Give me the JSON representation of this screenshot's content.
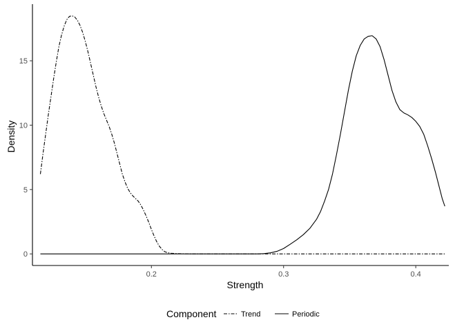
{
  "chart_data": {
    "type": "line",
    "title": "",
    "xlabel": "Strength",
    "ylabel": "Density",
    "xlim": [
      0.11,
      0.425
    ],
    "ylim": [
      -0.9,
      19.4
    ],
    "x_ticks": [
      0.2,
      0.3,
      0.4
    ],
    "x_tick_labels": [
      "0.2",
      "0.3",
      "0.4"
    ],
    "y_ticks": [
      0,
      5,
      10,
      15
    ],
    "y_tick_labels": [
      "0",
      "5",
      "10",
      "15"
    ],
    "grid": false,
    "legend": {
      "position": "bottom",
      "title": "Component",
      "entries": [
        "Trend",
        "Periodic"
      ]
    },
    "series": [
      {
        "name": "Trend",
        "line_style": "dashdot",
        "color": "#000000",
        "points": [
          [
            0.116,
            6.2
          ],
          [
            0.118,
            7.8
          ],
          [
            0.12,
            9.3
          ],
          [
            0.122,
            10.8
          ],
          [
            0.124,
            12.2
          ],
          [
            0.126,
            13.6
          ],
          [
            0.128,
            14.9
          ],
          [
            0.13,
            16.1
          ],
          [
            0.132,
            17.0
          ],
          [
            0.134,
            17.7
          ],
          [
            0.136,
            18.2
          ],
          [
            0.138,
            18.45
          ],
          [
            0.14,
            18.5
          ],
          [
            0.142,
            18.4
          ],
          [
            0.144,
            18.15
          ],
          [
            0.146,
            17.75
          ],
          [
            0.148,
            17.2
          ],
          [
            0.15,
            16.5
          ],
          [
            0.152,
            15.7
          ],
          [
            0.154,
            14.8
          ],
          [
            0.156,
            13.9
          ],
          [
            0.158,
            13.0
          ],
          [
            0.16,
            12.2
          ],
          [
            0.162,
            11.5
          ],
          [
            0.164,
            10.9
          ],
          [
            0.166,
            10.4
          ],
          [
            0.168,
            9.9
          ],
          [
            0.17,
            9.3
          ],
          [
            0.172,
            8.6
          ],
          [
            0.174,
            7.8
          ],
          [
            0.176,
            7.0
          ],
          [
            0.178,
            6.2
          ],
          [
            0.18,
            5.6
          ],
          [
            0.182,
            5.1
          ],
          [
            0.184,
            4.75
          ],
          [
            0.186,
            4.5
          ],
          [
            0.188,
            4.3
          ],
          [
            0.19,
            4.1
          ],
          [
            0.192,
            3.8
          ],
          [
            0.194,
            3.4
          ],
          [
            0.196,
            2.95
          ],
          [
            0.198,
            2.45
          ],
          [
            0.2,
            1.9
          ],
          [
            0.202,
            1.4
          ],
          [
            0.204,
            0.95
          ],
          [
            0.206,
            0.6
          ],
          [
            0.208,
            0.35
          ],
          [
            0.21,
            0.18
          ],
          [
            0.212,
            0.1
          ],
          [
            0.215,
            0.05
          ],
          [
            0.22,
            0.02
          ],
          [
            0.23,
            0.0
          ],
          [
            0.3,
            0.0
          ],
          [
            0.422,
            0.0
          ]
        ]
      },
      {
        "name": "Periodic",
        "line_style": "solid",
        "color": "#000000",
        "points": [
          [
            0.116,
            0.0
          ],
          [
            0.28,
            0.0
          ],
          [
            0.285,
            0.02
          ],
          [
            0.29,
            0.08
          ],
          [
            0.295,
            0.2
          ],
          [
            0.3,
            0.42
          ],
          [
            0.305,
            0.75
          ],
          [
            0.31,
            1.1
          ],
          [
            0.315,
            1.5
          ],
          [
            0.32,
            2.0
          ],
          [
            0.325,
            2.7
          ],
          [
            0.328,
            3.3
          ],
          [
            0.331,
            4.1
          ],
          [
            0.334,
            5.0
          ],
          [
            0.337,
            6.2
          ],
          [
            0.34,
            7.7
          ],
          [
            0.343,
            9.3
          ],
          [
            0.346,
            11.0
          ],
          [
            0.349,
            12.7
          ],
          [
            0.352,
            14.2
          ],
          [
            0.355,
            15.4
          ],
          [
            0.358,
            16.2
          ],
          [
            0.361,
            16.7
          ],
          [
            0.364,
            16.9
          ],
          [
            0.367,
            16.95
          ],
          [
            0.37,
            16.7
          ],
          [
            0.373,
            16.1
          ],
          [
            0.376,
            15.1
          ],
          [
            0.379,
            13.9
          ],
          [
            0.382,
            12.7
          ],
          [
            0.385,
            11.8
          ],
          [
            0.388,
            11.2
          ],
          [
            0.391,
            10.95
          ],
          [
            0.394,
            10.8
          ],
          [
            0.397,
            10.6
          ],
          [
            0.4,
            10.3
          ],
          [
            0.403,
            9.9
          ],
          [
            0.406,
            9.3
          ],
          [
            0.409,
            8.4
          ],
          [
            0.412,
            7.4
          ],
          [
            0.415,
            6.3
          ],
          [
            0.418,
            5.1
          ],
          [
            0.42,
            4.3
          ],
          [
            0.422,
            3.7
          ]
        ]
      }
    ]
  }
}
